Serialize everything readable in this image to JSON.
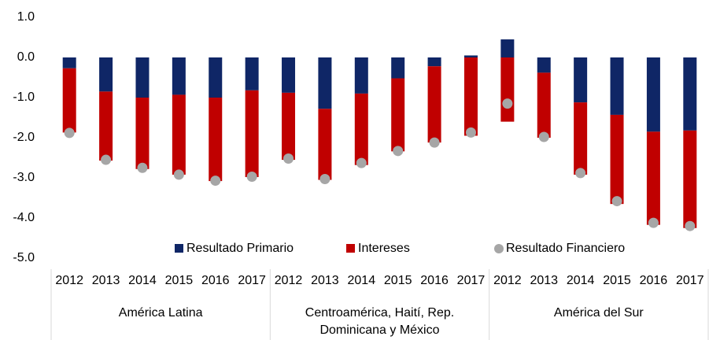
{
  "chart_data": {
    "type": "stacked-bar-scatter",
    "groups": [
      {
        "label": "América Latina",
        "categories": [
          "2012",
          "2013",
          "2014",
          "2015",
          "2016",
          "2017"
        ]
      },
      {
        "label": "Centroamérica, Haití, Rep. Dominicana y México",
        "categories": [
          "2012",
          "2013",
          "2014",
          "2015",
          "2016",
          "2017"
        ]
      },
      {
        "label": "América del Sur",
        "categories": [
          "2012",
          "2013",
          "2014",
          "2015",
          "2016",
          "2017"
        ]
      }
    ],
    "series": [
      {
        "name": "Resultado Primario",
        "kind": "bar",
        "color": "#0f2666",
        "values": [
          -0.27,
          -0.85,
          -1.0,
          -0.93,
          -1.0,
          -0.82,
          -0.88,
          -1.28,
          -0.9,
          -0.52,
          -0.22,
          0.05,
          0.45,
          -0.38,
          -1.12,
          -1.43,
          -1.85,
          -1.82
        ]
      },
      {
        "name": "Intereses",
        "kind": "bar",
        "color": "#c00000",
        "values": [
          -1.6,
          -1.72,
          -1.78,
          -1.99,
          -2.08,
          -2.16,
          -1.67,
          -1.77,
          -1.78,
          -1.82,
          -1.9,
          -1.95,
          -1.6,
          -1.62,
          -1.8,
          -2.22,
          -2.32,
          -2.43
        ]
      },
      {
        "name": "Resultado Financiero",
        "kind": "scatter",
        "color": "#a6a6a6",
        "values": [
          -1.88,
          -2.55,
          -2.75,
          -2.92,
          -3.07,
          -2.97,
          -2.52,
          -3.03,
          -2.63,
          -2.33,
          -2.12,
          -1.87,
          -1.15,
          -1.98,
          -2.88,
          -3.58,
          -4.12,
          -4.2
        ]
      }
    ],
    "ylim": [
      -5,
      1
    ],
    "yticks": [
      {
        "value": -5,
        "label": "-5.0"
      },
      {
        "value": -4,
        "label": "-4.0"
      },
      {
        "value": -3,
        "label": "-3.0"
      },
      {
        "value": -2,
        "label": "-2.0"
      },
      {
        "value": -1,
        "label": "-1.0"
      },
      {
        "value": 0,
        "label": "0.0"
      },
      {
        "value": 1,
        "label": "1.0"
      }
    ],
    "legend": "bottom-inside"
  }
}
